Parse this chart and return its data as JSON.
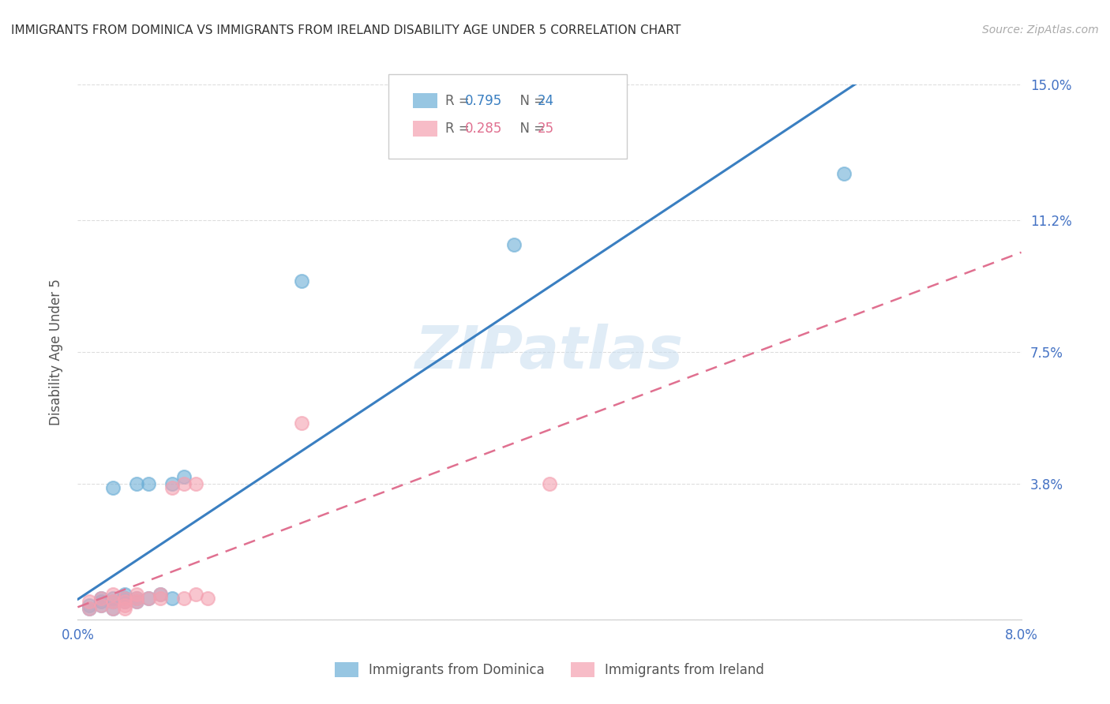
{
  "title": "IMMIGRANTS FROM DOMINICA VS IMMIGRANTS FROM IRELAND DISABILITY AGE UNDER 5 CORRELATION CHART",
  "source": "Source: ZipAtlas.com",
  "ylabel_label": "Disability Age Under 5",
  "x_min": 0.0,
  "x_max": 0.08,
  "y_min": 0.0,
  "y_max": 0.15,
  "x_ticks": [
    0.0,
    0.02,
    0.04,
    0.06,
    0.08
  ],
  "x_tick_labels": [
    "0.0%",
    "",
    "",
    "",
    "8.0%"
  ],
  "y_ticks": [
    0.0,
    0.038,
    0.075,
    0.112,
    0.15
  ],
  "y_tick_labels": [
    "",
    "3.8%",
    "7.5%",
    "11.2%",
    "15.0%"
  ],
  "dominica_color": "#6baed6",
  "ireland_color": "#f4a0b0",
  "dominica_line_color": "#3a7fc1",
  "ireland_line_color": "#e07090",
  "legend_r_dominica": "0.795",
  "legend_n_dominica": "24",
  "legend_r_ireland": "0.285",
  "legend_n_ireland": "25",
  "watermark": "ZIPatlas",
  "dominica_points_x": [
    0.001,
    0.001,
    0.002,
    0.002,
    0.002,
    0.003,
    0.003,
    0.003,
    0.003,
    0.004,
    0.004,
    0.004,
    0.005,
    0.005,
    0.005,
    0.006,
    0.006,
    0.007,
    0.008,
    0.008,
    0.009,
    0.019,
    0.037,
    0.065
  ],
  "dominica_points_y": [
    0.003,
    0.004,
    0.004,
    0.005,
    0.006,
    0.003,
    0.005,
    0.006,
    0.037,
    0.005,
    0.006,
    0.007,
    0.005,
    0.006,
    0.038,
    0.006,
    0.038,
    0.007,
    0.006,
    0.038,
    0.04,
    0.095,
    0.105,
    0.125
  ],
  "ireland_points_x": [
    0.001,
    0.001,
    0.002,
    0.002,
    0.003,
    0.003,
    0.003,
    0.004,
    0.004,
    0.004,
    0.004,
    0.005,
    0.005,
    0.005,
    0.006,
    0.007,
    0.007,
    0.008,
    0.009,
    0.009,
    0.01,
    0.01,
    0.011,
    0.019,
    0.04
  ],
  "ireland_points_y": [
    0.003,
    0.005,
    0.004,
    0.006,
    0.003,
    0.005,
    0.007,
    0.004,
    0.005,
    0.006,
    0.003,
    0.006,
    0.007,
    0.005,
    0.006,
    0.006,
    0.007,
    0.037,
    0.006,
    0.038,
    0.007,
    0.038,
    0.006,
    0.055,
    0.038
  ],
  "background_color": "#ffffff",
  "grid_color": "#dddddd",
  "tick_color": "#4472c4"
}
